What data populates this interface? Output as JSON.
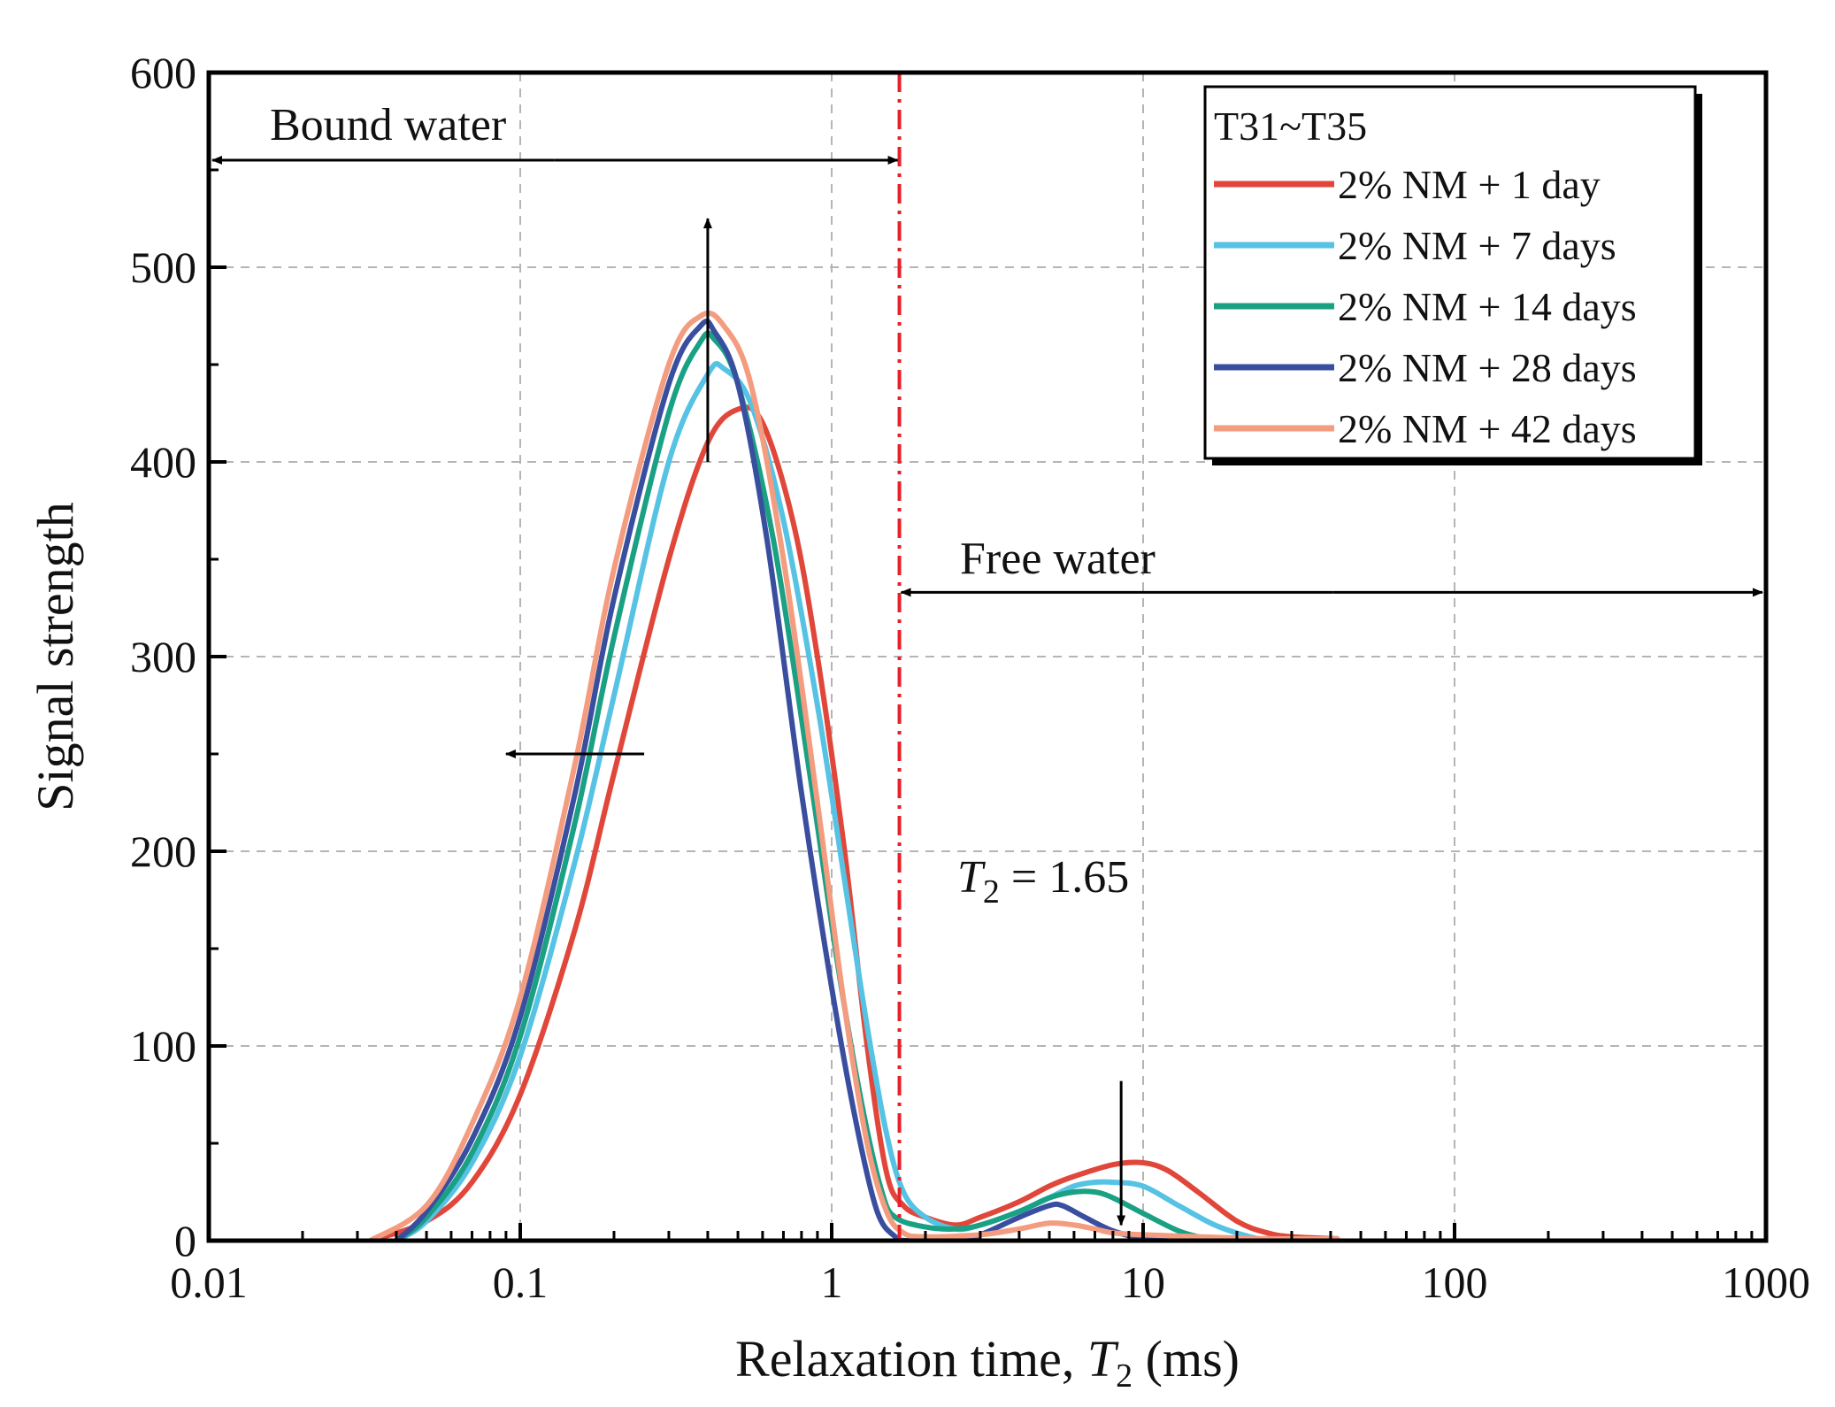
{
  "chart_data": {
    "type": "line",
    "xscale": "log",
    "xlim": [
      0.01,
      1000
    ],
    "ylim": [
      0,
      600
    ],
    "grid": true,
    "x_ticks": [
      0.01,
      0.1,
      1,
      10,
      100,
      1000
    ],
    "x_tick_labels": [
      "0.01",
      "0.1",
      "1",
      "10",
      "100",
      "1000"
    ],
    "y_ticks": [
      0,
      100,
      200,
      300,
      400,
      500,
      600
    ],
    "y_tick_labels": [
      "0",
      "100",
      "200",
      "300",
      "400",
      "500",
      "600"
    ],
    "xlabel": {
      "prefix": "Relaxation time, ",
      "symbol": "T",
      "sub": "2",
      "suffix": " (ms)"
    },
    "ylabel": "Signal strength",
    "legend": {
      "title": "T31~T35",
      "position": "top-right"
    },
    "threshold": {
      "x": 1.65,
      "style": "red dash-dot",
      "label_symbol": "T",
      "label_sub": "2",
      "label_rest": " = 1.65"
    },
    "regions": [
      {
        "label": "Bound water",
        "x_from": 0.01,
        "x_to": 1.65,
        "y": 555
      },
      {
        "label": "Free water",
        "x_from": 1.65,
        "x_to": 1000,
        "y": 333
      }
    ],
    "series": [
      {
        "name": "2% NM + 1 day",
        "color": "#e0473a",
        "points": [
          [
            0.033,
            0
          ],
          [
            0.05,
            10
          ],
          [
            0.07,
            30
          ],
          [
            0.1,
            75
          ],
          [
            0.15,
            160
          ],
          [
            0.2,
            240
          ],
          [
            0.3,
            350
          ],
          [
            0.4,
            410
          ],
          [
            0.5,
            427
          ],
          [
            0.6,
            420
          ],
          [
            0.75,
            370
          ],
          [
            0.9,
            300
          ],
          [
            1.1,
            200
          ],
          [
            1.3,
            100
          ],
          [
            1.5,
            35
          ],
          [
            1.7,
            18
          ],
          [
            2,
            12
          ],
          [
            2.5,
            8
          ],
          [
            3,
            12
          ],
          [
            4,
            20
          ],
          [
            5,
            28
          ],
          [
            6,
            33
          ],
          [
            8,
            39
          ],
          [
            10,
            40
          ],
          [
            12,
            36
          ],
          [
            15,
            25
          ],
          [
            20,
            10
          ],
          [
            25,
            4
          ],
          [
            30,
            2
          ],
          [
            42,
            1
          ]
        ]
      },
      {
        "name": "2% NM + 7 days",
        "color": "#56c2e4",
        "points": [
          [
            0.04,
            0
          ],
          [
            0.05,
            10
          ],
          [
            0.07,
            40
          ],
          [
            0.1,
            95
          ],
          [
            0.15,
            195
          ],
          [
            0.2,
            280
          ],
          [
            0.3,
            400
          ],
          [
            0.4,
            445
          ],
          [
            0.45,
            448
          ],
          [
            0.55,
            430
          ],
          [
            0.7,
            370
          ],
          [
            0.9,
            275
          ],
          [
            1.1,
            185
          ],
          [
            1.3,
            110
          ],
          [
            1.5,
            55
          ],
          [
            1.7,
            25
          ],
          [
            2,
            12
          ],
          [
            2.5,
            6
          ],
          [
            3,
            8
          ],
          [
            4,
            15
          ],
          [
            5,
            22
          ],
          [
            6,
            28
          ],
          [
            7,
            30
          ],
          [
            8,
            30
          ],
          [
            10,
            28
          ],
          [
            13,
            18
          ],
          [
            17,
            8
          ],
          [
            22,
            2
          ],
          [
            26,
            0
          ]
        ]
      },
      {
        "name": "2% NM + 14 days",
        "color": "#1aa083",
        "points": [
          [
            0.04,
            0
          ],
          [
            0.05,
            12
          ],
          [
            0.07,
            45
          ],
          [
            0.1,
            105
          ],
          [
            0.15,
            215
          ],
          [
            0.2,
            310
          ],
          [
            0.3,
            425
          ],
          [
            0.38,
            462
          ],
          [
            0.42,
            463
          ],
          [
            0.5,
            440
          ],
          [
            0.65,
            360
          ],
          [
            0.85,
            240
          ],
          [
            1.05,
            140
          ],
          [
            1.25,
            70
          ],
          [
            1.45,
            25
          ],
          [
            1.6,
            12
          ],
          [
            2,
            7
          ],
          [
            2.5,
            6
          ],
          [
            3,
            8
          ],
          [
            4,
            15
          ],
          [
            5,
            22
          ],
          [
            6,
            25
          ],
          [
            7,
            25
          ],
          [
            8,
            22
          ],
          [
            10,
            14
          ],
          [
            13,
            5
          ],
          [
            16,
            1
          ],
          [
            18,
            0
          ]
        ]
      },
      {
        "name": "2% NM + 28 days",
        "color": "#3a4ea0",
        "points": [
          [
            0.04,
            0
          ],
          [
            0.05,
            15
          ],
          [
            0.07,
            52
          ],
          [
            0.1,
            115
          ],
          [
            0.15,
            230
          ],
          [
            0.2,
            330
          ],
          [
            0.3,
            440
          ],
          [
            0.38,
            470
          ],
          [
            0.42,
            467
          ],
          [
            0.5,
            440
          ],
          [
            0.62,
            360
          ],
          [
            0.8,
            230
          ],
          [
            1,
            130
          ],
          [
            1.2,
            60
          ],
          [
            1.4,
            15
          ],
          [
            1.6,
            2
          ],
          [
            1.75,
            0
          ],
          [
            2.5,
            0
          ],
          [
            3,
            3
          ],
          [
            4,
            12
          ],
          [
            5,
            18
          ],
          [
            5.5,
            18
          ],
          [
            6.5,
            12
          ],
          [
            8,
            5
          ],
          [
            10,
            1
          ],
          [
            12,
            0
          ]
        ]
      },
      {
        "name": "2% NM + 42 days",
        "color": "#f39c7f",
        "points": [
          [
            0.033,
            0
          ],
          [
            0.05,
            18
          ],
          [
            0.07,
            60
          ],
          [
            0.1,
            125
          ],
          [
            0.15,
            245
          ],
          [
            0.2,
            345
          ],
          [
            0.3,
            450
          ],
          [
            0.38,
            475
          ],
          [
            0.45,
            470
          ],
          [
            0.55,
            440
          ],
          [
            0.7,
            350
          ],
          [
            0.9,
            225
          ],
          [
            1.1,
            120
          ],
          [
            1.3,
            50
          ],
          [
            1.5,
            15
          ],
          [
            1.7,
            4
          ],
          [
            2,
            2
          ],
          [
            3,
            3
          ],
          [
            4,
            6
          ],
          [
            5,
            9
          ],
          [
            6,
            8
          ],
          [
            7,
            6
          ],
          [
            8,
            4
          ],
          [
            10,
            3
          ],
          [
            15,
            2
          ],
          [
            25,
            1
          ],
          [
            42,
            1
          ]
        ]
      }
    ]
  }
}
